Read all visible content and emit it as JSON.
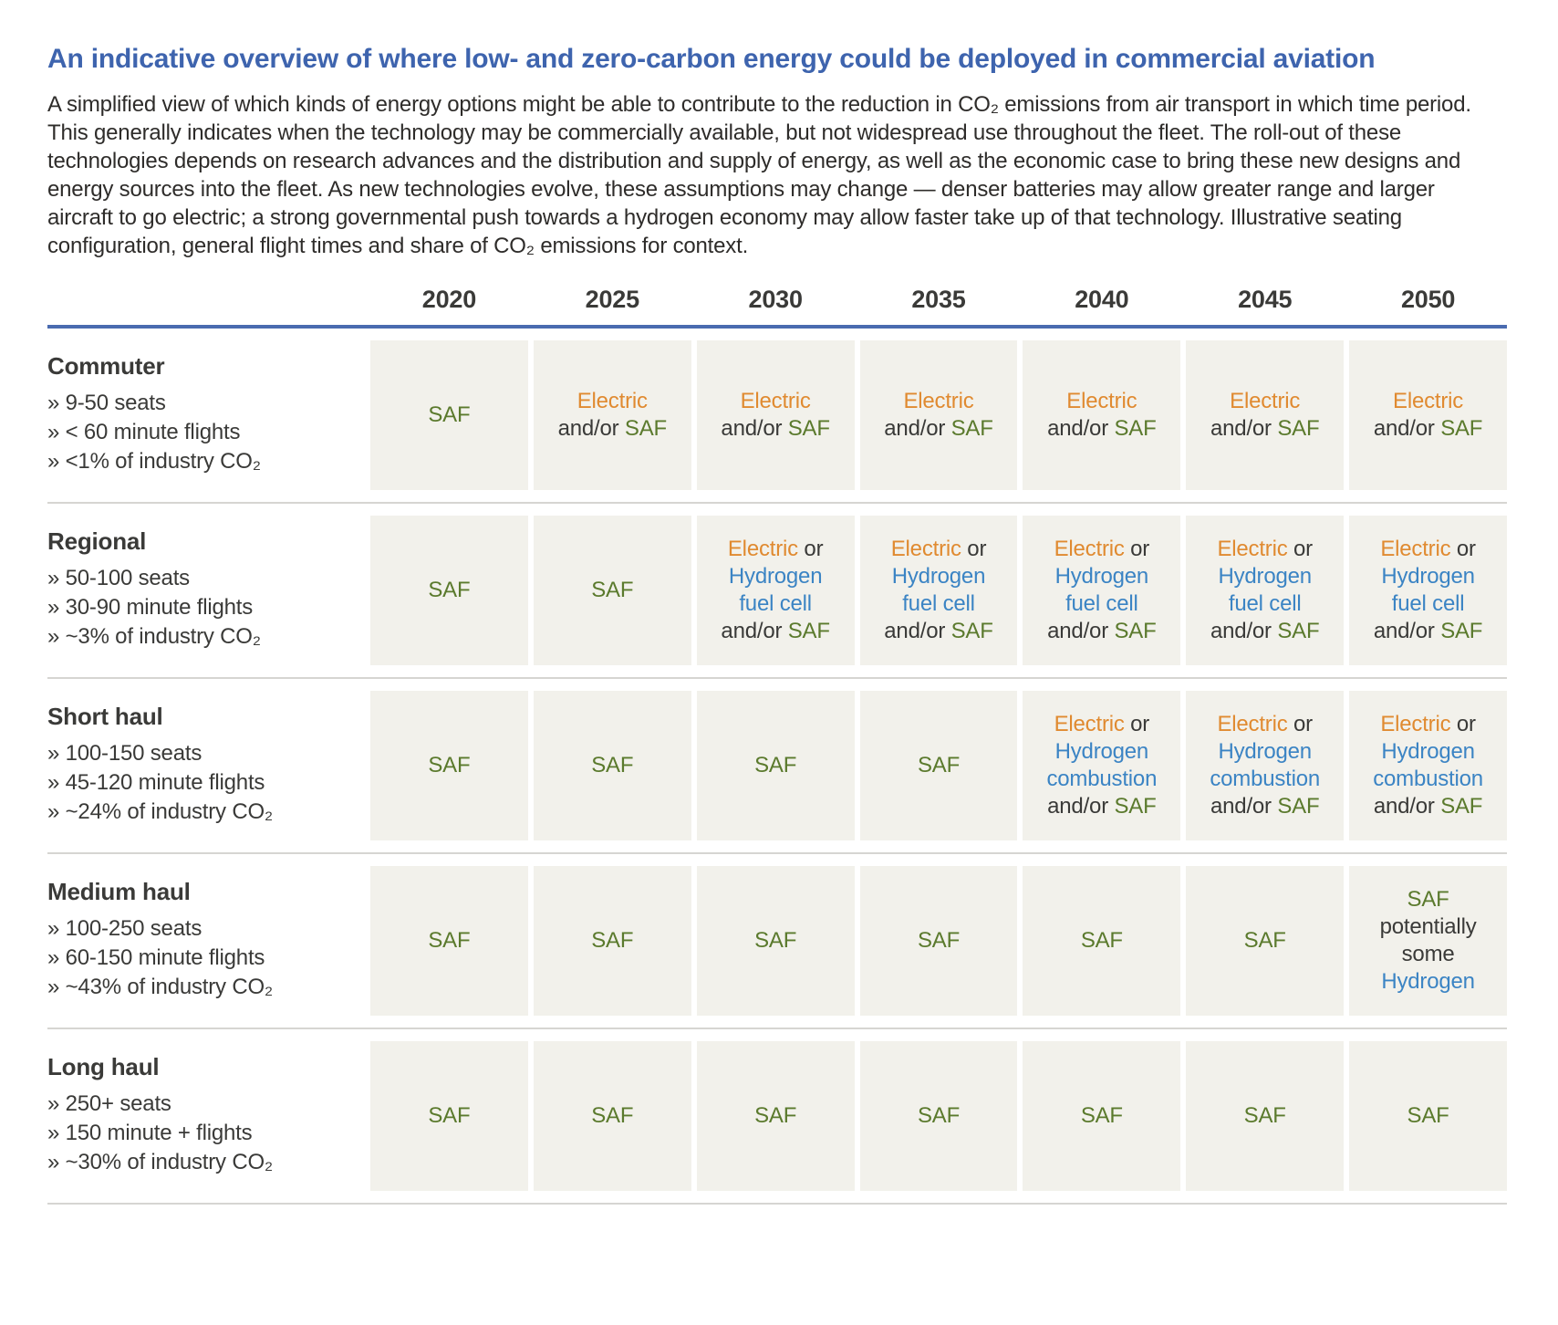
{
  "header": {
    "title": "An indicative overview of where low- and zero-carbon energy could be deployed in commercial aviation",
    "intro": "A simplified view of which kinds of energy options might be able to contribute to the reduction in CO₂ emissions from air transport in which time period. This generally indicates when the technology may be commercially available, but not widespread use throughout the fleet. The roll-out of these technologies depends on research advances and the distribution and supply of energy, as well as the economic case to bring these new designs and energy sources into the fleet. As new technologies evolve, these assumptions may change — denser batteries may allow greater range and larger aircraft to go electric; a strong governmental push towards a hydrogen economy may allow faster take up of that technology. Illustrative seating configuration, general flight times and share of CO₂ emissions for context."
  },
  "colors": {
    "title_blue": "#3e64ae",
    "header_rule_blue": "#4a6bb0",
    "cell_bg": "#f2f1eb",
    "saf": "#5b7a2d",
    "electric": "#e08a30",
    "hydrogen": "#3b84c4",
    "plain": "#3a3a38",
    "divider": "#d6d5d2"
  },
  "table": {
    "years": [
      "2020",
      "2025",
      "2030",
      "2035",
      "2040",
      "2045",
      "2050"
    ],
    "rows": [
      {
        "category": "Commuter",
        "bullets": [
          "» 9-50 seats",
          "» < 60 minute flights",
          "» <1% of industry CO₂"
        ],
        "cells": [
          [
            [
              [
                "SAF",
                "saf"
              ]
            ]
          ],
          [
            [
              [
                "Electric",
                "electric"
              ]
            ],
            [
              [
                "and/or ",
                "plain"
              ],
              [
                "SAF",
                "saf"
              ]
            ]
          ],
          [
            [
              [
                "Electric",
                "electric"
              ]
            ],
            [
              [
                "and/or ",
                "plain"
              ],
              [
                "SAF",
                "saf"
              ]
            ]
          ],
          [
            [
              [
                "Electric",
                "electric"
              ]
            ],
            [
              [
                "and/or ",
                "plain"
              ],
              [
                "SAF",
                "saf"
              ]
            ]
          ],
          [
            [
              [
                "Electric",
                "electric"
              ]
            ],
            [
              [
                "and/or ",
                "plain"
              ],
              [
                "SAF",
                "saf"
              ]
            ]
          ],
          [
            [
              [
                "Electric",
                "electric"
              ]
            ],
            [
              [
                "and/or ",
                "plain"
              ],
              [
                "SAF",
                "saf"
              ]
            ]
          ],
          [
            [
              [
                "Electric",
                "electric"
              ]
            ],
            [
              [
                "and/or ",
                "plain"
              ],
              [
                "SAF",
                "saf"
              ]
            ]
          ]
        ]
      },
      {
        "category": "Regional",
        "bullets": [
          "» 50-100 seats",
          "» 30-90 minute flights",
          "» ~3% of industry CO₂"
        ],
        "cells": [
          [
            [
              [
                "SAF",
                "saf"
              ]
            ]
          ],
          [
            [
              [
                "SAF",
                "saf"
              ]
            ]
          ],
          [
            [
              [
                "Electric",
                "electric"
              ],
              [
                " or",
                "plain"
              ]
            ],
            [
              [
                "Hydrogen",
                "hydrogen"
              ]
            ],
            [
              [
                "fuel cell",
                "hydrogen"
              ]
            ],
            [
              [
                "and/or ",
                "plain"
              ],
              [
                "SAF",
                "saf"
              ]
            ]
          ],
          [
            [
              [
                "Electric",
                "electric"
              ],
              [
                " or",
                "plain"
              ]
            ],
            [
              [
                "Hydrogen",
                "hydrogen"
              ]
            ],
            [
              [
                "fuel cell",
                "hydrogen"
              ]
            ],
            [
              [
                "and/or ",
                "plain"
              ],
              [
                "SAF",
                "saf"
              ]
            ]
          ],
          [
            [
              [
                "Electric",
                "electric"
              ],
              [
                " or",
                "plain"
              ]
            ],
            [
              [
                "Hydrogen",
                "hydrogen"
              ]
            ],
            [
              [
                "fuel cell",
                "hydrogen"
              ]
            ],
            [
              [
                "and/or ",
                "plain"
              ],
              [
                "SAF",
                "saf"
              ]
            ]
          ],
          [
            [
              [
                "Electric",
                "electric"
              ],
              [
                " or",
                "plain"
              ]
            ],
            [
              [
                "Hydrogen",
                "hydrogen"
              ]
            ],
            [
              [
                "fuel cell",
                "hydrogen"
              ]
            ],
            [
              [
                "and/or ",
                "plain"
              ],
              [
                "SAF",
                "saf"
              ]
            ]
          ],
          [
            [
              [
                "Electric",
                "electric"
              ],
              [
                " or",
                "plain"
              ]
            ],
            [
              [
                "Hydrogen",
                "hydrogen"
              ]
            ],
            [
              [
                "fuel cell",
                "hydrogen"
              ]
            ],
            [
              [
                "and/or ",
                "plain"
              ],
              [
                "SAF",
                "saf"
              ]
            ]
          ]
        ]
      },
      {
        "category": "Short haul",
        "bullets": [
          "» 100-150 seats",
          "» 45-120 minute flights",
          "» ~24% of industry CO₂"
        ],
        "cells": [
          [
            [
              [
                "SAF",
                "saf"
              ]
            ]
          ],
          [
            [
              [
                "SAF",
                "saf"
              ]
            ]
          ],
          [
            [
              [
                "SAF",
                "saf"
              ]
            ]
          ],
          [
            [
              [
                "SAF",
                "saf"
              ]
            ]
          ],
          [
            [
              [
                "Electric",
                "electric"
              ],
              [
                " or",
                "plain"
              ]
            ],
            [
              [
                "Hydrogen",
                "hydrogen"
              ]
            ],
            [
              [
                "combustion",
                "hydrogen"
              ]
            ],
            [
              [
                "and/or ",
                "plain"
              ],
              [
                "SAF",
                "saf"
              ]
            ]
          ],
          [
            [
              [
                "Electric",
                "electric"
              ],
              [
                " or",
                "plain"
              ]
            ],
            [
              [
                "Hydrogen",
                "hydrogen"
              ]
            ],
            [
              [
                "combustion",
                "hydrogen"
              ]
            ],
            [
              [
                "and/or ",
                "plain"
              ],
              [
                "SAF",
                "saf"
              ]
            ]
          ],
          [
            [
              [
                "Electric",
                "electric"
              ],
              [
                " or",
                "plain"
              ]
            ],
            [
              [
                "Hydrogen",
                "hydrogen"
              ]
            ],
            [
              [
                "combustion",
                "hydrogen"
              ]
            ],
            [
              [
                "and/or ",
                "plain"
              ],
              [
                "SAF",
                "saf"
              ]
            ]
          ]
        ]
      },
      {
        "category": "Medium haul",
        "bullets": [
          "» 100-250 seats",
          "» 60-150 minute flights",
          "» ~43% of industry CO₂"
        ],
        "cells": [
          [
            [
              [
                "SAF",
                "saf"
              ]
            ]
          ],
          [
            [
              [
                "SAF",
                "saf"
              ]
            ]
          ],
          [
            [
              [
                "SAF",
                "saf"
              ]
            ]
          ],
          [
            [
              [
                "SAF",
                "saf"
              ]
            ]
          ],
          [
            [
              [
                "SAF",
                "saf"
              ]
            ]
          ],
          [
            [
              [
                "SAF",
                "saf"
              ]
            ]
          ],
          [
            [
              [
                "SAF",
                "saf"
              ]
            ],
            [
              [
                "potentially",
                "plain"
              ]
            ],
            [
              [
                "some",
                "plain"
              ]
            ],
            [
              [
                "Hydrogen",
                "hydrogen"
              ]
            ]
          ]
        ]
      },
      {
        "category": "Long haul",
        "bullets": [
          "» 250+ seats",
          "» 150 minute + flights",
          "» ~30% of industry CO₂"
        ],
        "cells": [
          [
            [
              [
                "SAF",
                "saf"
              ]
            ]
          ],
          [
            [
              [
                "SAF",
                "saf"
              ]
            ]
          ],
          [
            [
              [
                "SAF",
                "saf"
              ]
            ]
          ],
          [
            [
              [
                "SAF",
                "saf"
              ]
            ]
          ],
          [
            [
              [
                "SAF",
                "saf"
              ]
            ]
          ],
          [
            [
              [
                "SAF",
                "saf"
              ]
            ]
          ],
          [
            [
              [
                "SAF",
                "saf"
              ]
            ]
          ]
        ]
      }
    ]
  },
  "chart_data": {
    "type": "table",
    "title": "An indicative overview of where low- and zero-carbon energy could be deployed in commercial aviation",
    "columns": [
      "2020",
      "2025",
      "2030",
      "2035",
      "2040",
      "2045",
      "2050"
    ],
    "rows": [
      {
        "label": "Commuter",
        "details": [
          "9-50 seats",
          "< 60 minute flights",
          "<1% of industry CO₂"
        ],
        "values": [
          "SAF",
          "Electric and/or SAF",
          "Electric and/or SAF",
          "Electric and/or SAF",
          "Electric and/or SAF",
          "Electric and/or SAF",
          "Electric and/or SAF"
        ]
      },
      {
        "label": "Regional",
        "details": [
          "50-100 seats",
          "30-90 minute flights",
          "~3% of industry CO₂"
        ],
        "values": [
          "SAF",
          "SAF",
          "Electric or Hydrogen fuel cell and/or SAF",
          "Electric or Hydrogen fuel cell and/or SAF",
          "Electric or Hydrogen fuel cell and/or SAF",
          "Electric or Hydrogen fuel cell and/or SAF",
          "Electric or Hydrogen fuel cell and/or SAF"
        ]
      },
      {
        "label": "Short haul",
        "details": [
          "100-150 seats",
          "45-120 minute flights",
          "~24% of industry CO₂"
        ],
        "values": [
          "SAF",
          "SAF",
          "SAF",
          "SAF",
          "Electric or Hydrogen combustion and/or SAF",
          "Electric or Hydrogen combustion and/or SAF",
          "Electric or Hydrogen combustion and/or SAF"
        ]
      },
      {
        "label": "Medium haul",
        "details": [
          "100-250 seats",
          "60-150 minute flights",
          "~43% of industry CO₂"
        ],
        "values": [
          "SAF",
          "SAF",
          "SAF",
          "SAF",
          "SAF",
          "SAF",
          "SAF potentially some Hydrogen"
        ]
      },
      {
        "label": "Long haul",
        "details": [
          "250+ seats",
          "150 minute + flights",
          "~30% of industry CO₂"
        ],
        "values": [
          "SAF",
          "SAF",
          "SAF",
          "SAF",
          "SAF",
          "SAF",
          "SAF"
        ]
      }
    ],
    "legend": [
      {
        "term": "SAF",
        "color": "#5b7a2d"
      },
      {
        "term": "Electric",
        "color": "#e08a30"
      },
      {
        "term": "Hydrogen",
        "color": "#3b84c4"
      }
    ]
  }
}
